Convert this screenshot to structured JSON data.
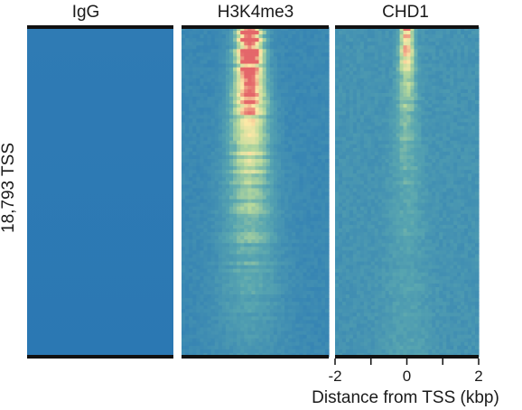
{
  "chart_data": [
    {
      "type": "heatmap",
      "title": "IgG",
      "ylabel": "18,793 TSS",
      "xlabel": "",
      "signal": {
        "center_kbp": 0,
        "intensity": 0.0
      }
    },
    {
      "type": "heatmap",
      "title": "H3K4me3",
      "ylabel": "",
      "xlabel": "",
      "signal": {
        "center_kbp": -0.15,
        "intensity": 1.0
      }
    },
    {
      "type": "heatmap",
      "title": "CHD1",
      "ylabel": "",
      "xlabel": "Distance from TSS (kbp)",
      "x_tick_labels": [
        "-2",
        "0",
        "2"
      ],
      "x_ticks": [
        -2,
        -1,
        0,
        1,
        2
      ],
      "xlim": [
        -2,
        2
      ],
      "signal": {
        "center_kbp": 0,
        "intensity": 0.75
      }
    }
  ],
  "colors": {
    "low": "#2b79b4",
    "mid_low": "#5aa7b0",
    "mid": "#b8d99c",
    "high": "#fce9a7",
    "max": "#e4676a",
    "frame": "#111111"
  }
}
